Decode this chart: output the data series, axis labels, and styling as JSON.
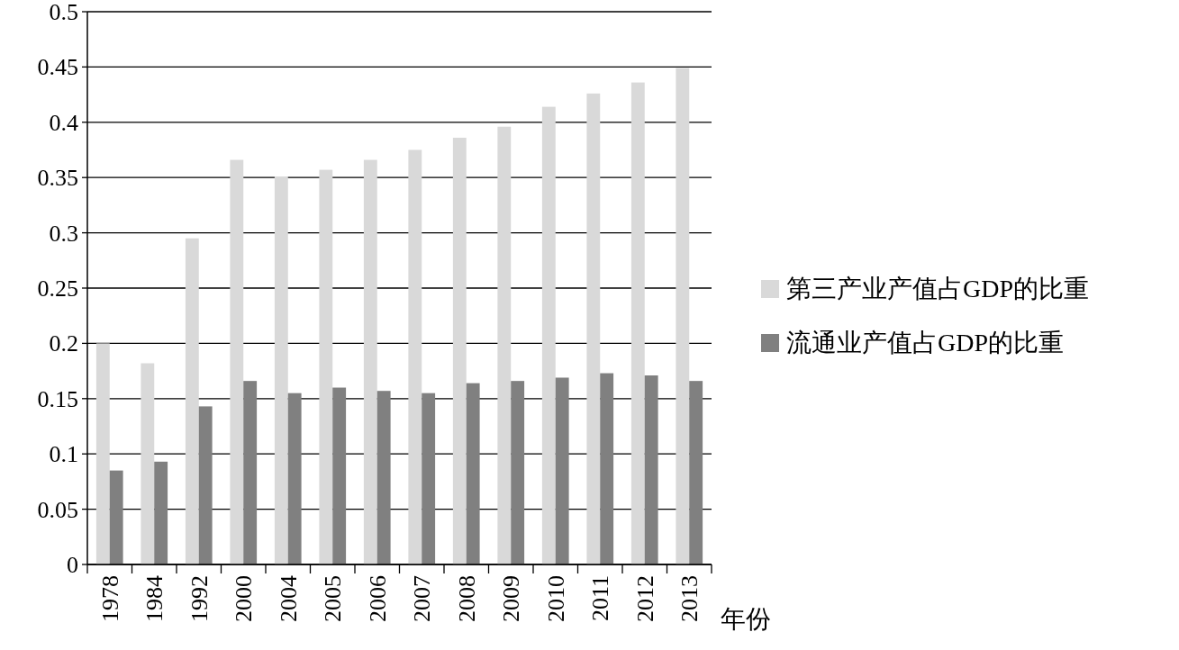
{
  "chart_data": {
    "type": "bar",
    "xlabel": "年份",
    "categories": [
      "1978",
      "1984",
      "1992",
      "2000",
      "2004",
      "2005",
      "2006",
      "2007",
      "2008",
      "2009",
      "2010",
      "2011",
      "2012",
      "2013"
    ],
    "series": [
      {
        "name": "第三产业产值占GDP的比重",
        "color": "#d9d9d9",
        "values": [
          0.2,
          0.182,
          0.295,
          0.366,
          0.351,
          0.357,
          0.366,
          0.375,
          0.386,
          0.396,
          0.414,
          0.426,
          0.436,
          0.449
        ]
      },
      {
        "name": "流通业产值占GDP的比重",
        "color": "#808080",
        "values": [
          0.085,
          0.093,
          0.143,
          0.166,
          0.155,
          0.16,
          0.157,
          0.155,
          0.164,
          0.166,
          0.169,
          0.173,
          0.171,
          0.166
        ]
      }
    ],
    "ylim": [
      0,
      0.5
    ],
    "yticks": [
      0,
      0.05,
      0.1,
      0.15,
      0.2,
      0.25,
      0.3,
      0.35,
      0.4,
      0.45,
      0.5
    ],
    "grid": "y",
    "legend": "right"
  }
}
